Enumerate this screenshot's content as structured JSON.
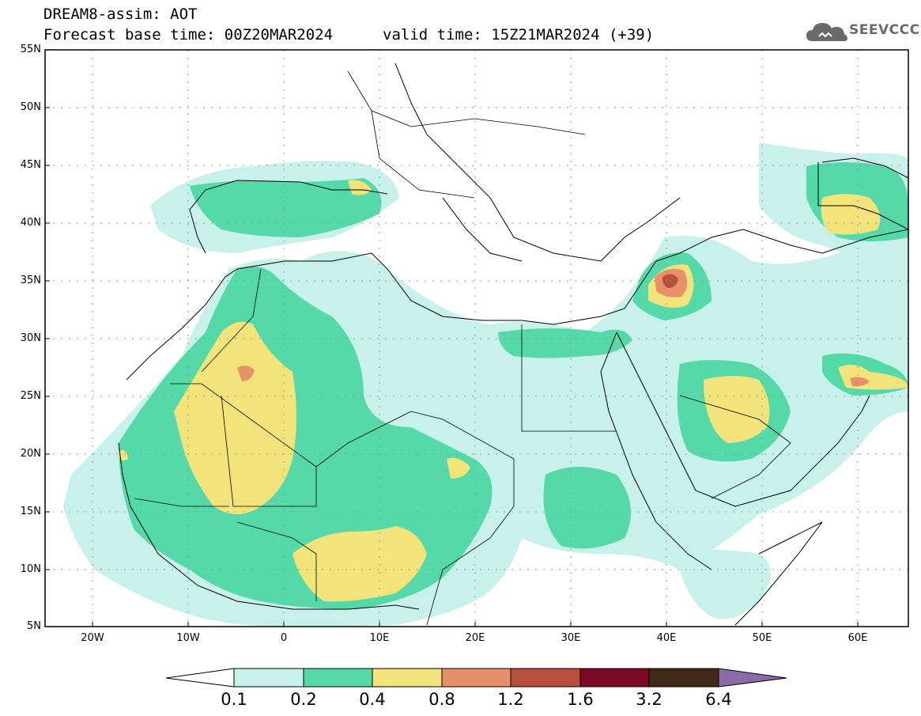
{
  "header": {
    "line1": "DREAM8-assim: AOT",
    "line2": "Forecast base time: 00Z20MAR2024",
    "valid": "valid time: 15Z21MAR2024 (+39)"
  },
  "logo": {
    "text": "SEEVCCC",
    "icon": "cloud-icon"
  },
  "axes": {
    "lat_labels": [
      "55N",
      "50N",
      "45N",
      "40N",
      "35N",
      "30N",
      "25N",
      "20N",
      "15N",
      "10N",
      "5N"
    ],
    "lon_labels": [
      "20W",
      "10W",
      "0",
      "10E",
      "20E",
      "30E",
      "40E",
      "50E",
      "60E"
    ]
  },
  "colorbar": {
    "labels": [
      "0.1",
      "0.2",
      "0.4",
      "0.8",
      "1.2",
      "1.6",
      "3.2",
      "6.4"
    ],
    "colors": [
      "#ffffff",
      "#c7f1ea",
      "#55d9a8",
      "#f2e47a",
      "#e8906a",
      "#b84e3c",
      "#7d0a24",
      "#3f2a17",
      "#8b6aa8"
    ]
  },
  "colors": {
    "aot_01": "#c7f1ea",
    "aot_02": "#55d9a8",
    "aot_04": "#f2e47a",
    "aot_08": "#e8906a",
    "aot_12": "#b84e3c"
  }
}
